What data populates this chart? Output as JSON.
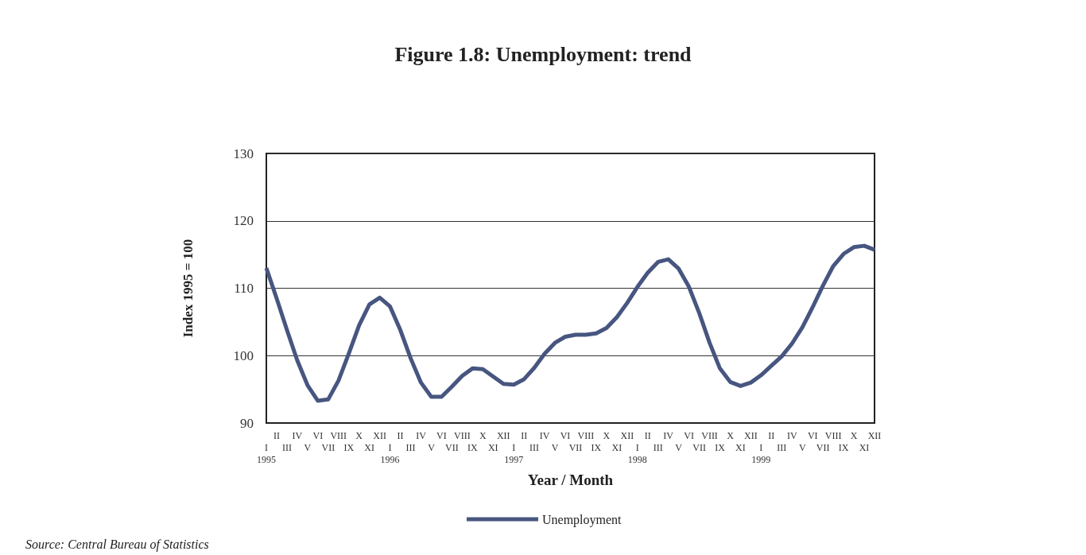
{
  "chart_data": {
    "type": "line",
    "title": "Figure 1.8: Unemployment: trend",
    "xlabel": "Year / Month",
    "ylabel": "Index 1995 = 100",
    "categories": [
      "I\n1995",
      "II",
      "III",
      "IV",
      "V",
      "VI",
      "VII",
      "VIII",
      "IX",
      "X",
      "XI",
      "XII",
      "I\n1996",
      "II",
      "III",
      "IV",
      "V",
      "VI",
      "VII",
      "VIII",
      "IX",
      "X",
      "XI",
      "XII",
      "I\n1997",
      "II",
      "III",
      "IV",
      "V",
      "VI",
      "VII",
      "VIII",
      "IX",
      "X",
      "XI",
      "XII",
      "I\n1998",
      "II",
      "III",
      "IV",
      "V",
      "VI",
      "VII",
      "VIII",
      "IX",
      "X",
      "XI",
      "XII",
      "I\n1999",
      "II",
      "III",
      "IV",
      "V",
      "VI",
      "VII",
      "VIII",
      "IX",
      "X",
      "XI",
      "XII"
    ],
    "series": [
      {
        "name": "Unemployment",
        "color": "#475680",
        "values": [
          113,
          108.5,
          103.8,
          99.3,
          95.6,
          93.3,
          93.5,
          96.3,
          100.3,
          104.5,
          107.6,
          108.6,
          107.3,
          103.8,
          99.6,
          96,
          93.9,
          93.9,
          95.4,
          97,
          98.1,
          98,
          96.9,
          95.8,
          95.7,
          96.5,
          98.2,
          100.3,
          101.9,
          102.8,
          103.1,
          103.1,
          103.3,
          104.1,
          105.7,
          107.8,
          110.2,
          112.3,
          113.9,
          114.3,
          112.9,
          110.2,
          106.3,
          101.9,
          98.1,
          96.1,
          95.5,
          96,
          97.1,
          98.5,
          99.9,
          101.8,
          104.2,
          107.2,
          110.4,
          113.3,
          115.1,
          116.1,
          116.3,
          115.7
        ]
      }
    ],
    "ylim": [
      90,
      130
    ],
    "yticks": [
      90,
      100,
      110,
      120,
      130
    ],
    "grid": "y",
    "legend": "bottom",
    "marker": "none",
    "line_style": "solid",
    "annotations": [
      "Source: Central Bureau of Statistics"
    ]
  }
}
